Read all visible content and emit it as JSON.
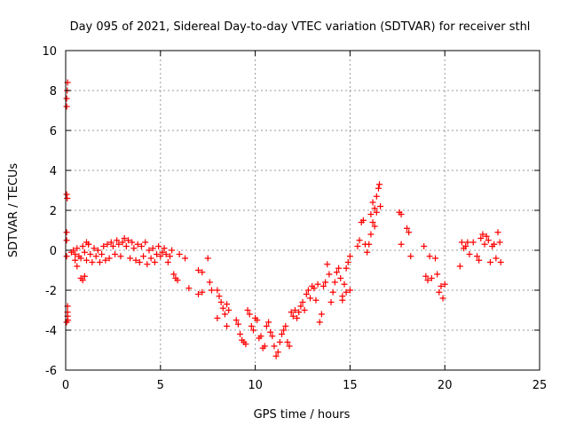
{
  "chart_data": {
    "type": "scatter",
    "title": "Day 095 of 2021, Sidereal Day-to-day VTEC variation (SDTVAR) for receiver sthl",
    "xlabel": "GPS time / hours",
    "ylabel": "SDTVAR / TECUs",
    "xlim": [
      0,
      25
    ],
    "ylim": [
      -6,
      10
    ],
    "xticks": [
      0,
      5,
      10,
      15,
      20,
      25
    ],
    "yticks": [
      -6,
      -4,
      -2,
      0,
      2,
      4,
      6,
      8,
      10
    ],
    "grid": true,
    "marker": "+",
    "color": "#ff0000",
    "series": [
      {
        "name": "SDTVAR",
        "points": [
          [
            0.05,
            7.2
          ],
          [
            0.05,
            7.6
          ],
          [
            0.08,
            8.0
          ],
          [
            0.1,
            8.4
          ],
          [
            0.05,
            2.8
          ],
          [
            0.08,
            2.6
          ],
          [
            0.05,
            0.9
          ],
          [
            0.05,
            0.5
          ],
          [
            0.05,
            -0.3
          ],
          [
            0.1,
            -2.8
          ],
          [
            0.1,
            -3.1
          ],
          [
            0.1,
            -3.3
          ],
          [
            0.12,
            -3.5
          ],
          [
            0.05,
            -3.6
          ],
          [
            0.3,
            -0.1
          ],
          [
            0.4,
            0.0
          ],
          [
            0.5,
            -0.2
          ],
          [
            0.6,
            0.1
          ],
          [
            0.7,
            -0.3
          ],
          [
            0.8,
            -0.4
          ],
          [
            0.9,
            0.2
          ],
          [
            1.0,
            -0.1
          ],
          [
            1.1,
            -0.5
          ],
          [
            1.2,
            0.3
          ],
          [
            1.3,
            -0.2
          ],
          [
            1.4,
            -0.6
          ],
          [
            1.5,
            0.1
          ],
          [
            1.6,
            -0.3
          ],
          [
            1.7,
            0.0
          ],
          [
            1.8,
            -0.6
          ],
          [
            1.9,
            -0.2
          ],
          [
            2.0,
            0.2
          ],
          [
            2.1,
            -0.5
          ],
          [
            2.2,
            0.3
          ],
          [
            2.3,
            -0.4
          ],
          [
            2.4,
            0.4
          ],
          [
            2.5,
            0.2
          ],
          [
            2.6,
            -0.2
          ],
          [
            2.7,
            0.5
          ],
          [
            2.8,
            0.3
          ],
          [
            2.9,
            -0.3
          ],
          [
            3.0,
            0.4
          ],
          [
            3.1,
            0.6
          ],
          [
            3.2,
            0.2
          ],
          [
            3.3,
            0.5
          ],
          [
            3.4,
            -0.4
          ],
          [
            3.5,
            0.4
          ],
          [
            3.6,
            0.1
          ],
          [
            3.7,
            -0.5
          ],
          [
            3.8,
            0.3
          ],
          [
            3.9,
            -0.6
          ],
          [
            4.0,
            0.2
          ],
          [
            4.1,
            -0.3
          ],
          [
            4.2,
            0.4
          ],
          [
            4.3,
            -0.7
          ],
          [
            4.4,
            0.0
          ],
          [
            4.5,
            -0.4
          ],
          [
            4.6,
            0.1
          ],
          [
            4.7,
            -0.6
          ],
          [
            4.8,
            -0.2
          ],
          [
            4.9,
            0.2
          ],
          [
            5.0,
            -0.3
          ],
          [
            5.1,
            -0.1
          ],
          [
            5.2,
            0.1
          ],
          [
            5.3,
            -0.2
          ],
          [
            5.4,
            -0.6
          ],
          [
            5.5,
            -0.3
          ],
          [
            5.6,
            0.0
          ],
          [
            5.7,
            -1.2
          ],
          [
            5.8,
            -1.4
          ],
          [
            5.9,
            -1.5
          ],
          [
            6.0,
            -0.2
          ],
          [
            0.8,
            -1.4
          ],
          [
            0.9,
            -1.5
          ],
          [
            1.0,
            -1.3
          ],
          [
            1.1,
            0.4
          ],
          [
            1.2,
            0.3
          ],
          [
            0.6,
            -0.8
          ],
          [
            0.5,
            -0.5
          ],
          [
            6.3,
            -0.4
          ],
          [
            6.5,
            -1.9
          ],
          [
            7.0,
            -1.0
          ],
          [
            7.2,
            -1.1
          ],
          [
            7.0,
            -2.2
          ],
          [
            7.2,
            -2.1
          ],
          [
            7.5,
            -0.4
          ],
          [
            7.6,
            -1.6
          ],
          [
            7.7,
            -2.0
          ],
          [
            8.0,
            -2.0
          ],
          [
            8.1,
            -2.3
          ],
          [
            8.2,
            -2.6
          ],
          [
            8.3,
            -2.9
          ],
          [
            8.4,
            -3.2
          ],
          [
            8.0,
            -3.4
          ],
          [
            8.5,
            -2.7
          ],
          [
            8.5,
            -3.8
          ],
          [
            8.6,
            -3.0
          ],
          [
            9.0,
            -3.5
          ],
          [
            9.1,
            -3.7
          ],
          [
            9.2,
            -4.2
          ],
          [
            9.3,
            -4.5
          ],
          [
            9.4,
            -4.6
          ],
          [
            9.5,
            -4.7
          ],
          [
            9.6,
            -3.0
          ],
          [
            9.7,
            -3.2
          ],
          [
            9.8,
            -3.8
          ],
          [
            9.9,
            -4.0
          ],
          [
            10.0,
            -3.4
          ],
          [
            10.1,
            -3.5
          ],
          [
            10.2,
            -4.4
          ],
          [
            10.3,
            -4.3
          ],
          [
            10.4,
            -4.9
          ],
          [
            10.5,
            -4.8
          ],
          [
            10.6,
            -3.8
          ],
          [
            10.7,
            -3.6
          ],
          [
            10.8,
            -4.1
          ],
          [
            10.9,
            -4.3
          ],
          [
            11.0,
            -4.8
          ],
          [
            11.1,
            -5.3
          ],
          [
            11.2,
            -5.1
          ],
          [
            11.3,
            -4.6
          ],
          [
            11.4,
            -4.2
          ],
          [
            11.5,
            -4.0
          ],
          [
            11.6,
            -3.8
          ],
          [
            11.7,
            -4.6
          ],
          [
            11.8,
            -4.8
          ],
          [
            11.9,
            -3.1
          ],
          [
            12.0,
            -3.3
          ],
          [
            12.1,
            -3.0
          ],
          [
            12.2,
            -3.4
          ],
          [
            12.3,
            -3.1
          ],
          [
            12.4,
            -2.8
          ],
          [
            12.5,
            -2.6
          ],
          [
            12.6,
            -3.0
          ],
          [
            12.7,
            -2.2
          ],
          [
            12.8,
            -2.0
          ],
          [
            12.9,
            -2.4
          ],
          [
            13.0,
            -1.8
          ],
          [
            13.1,
            -1.9
          ],
          [
            13.2,
            -2.5
          ],
          [
            13.3,
            -1.7
          ],
          [
            13.4,
            -3.6
          ],
          [
            13.5,
            -3.2
          ],
          [
            13.6,
            -1.8
          ],
          [
            13.7,
            -1.6
          ],
          [
            13.8,
            -0.7
          ],
          [
            13.9,
            -1.2
          ],
          [
            14.0,
            -2.6
          ],
          [
            14.1,
            -2.1
          ],
          [
            14.2,
            -1.6
          ],
          [
            14.3,
            -1.1
          ],
          [
            14.4,
            -0.9
          ],
          [
            14.5,
            -1.4
          ],
          [
            14.6,
            -2.3
          ],
          [
            14.7,
            -1.7
          ],
          [
            14.8,
            -0.9
          ],
          [
            14.9,
            -0.6
          ],
          [
            15.0,
            -0.3
          ],
          [
            14.8,
            -2.1
          ],
          [
            14.6,
            -2.5
          ],
          [
            15.0,
            -2.0
          ],
          [
            15.4,
            0.2
          ],
          [
            15.5,
            0.5
          ],
          [
            15.6,
            1.4
          ],
          [
            15.7,
            1.5
          ],
          [
            15.8,
            0.3
          ],
          [
            15.9,
            -0.1
          ],
          [
            16.0,
            0.3
          ],
          [
            16.1,
            0.8
          ],
          [
            16.2,
            1.4
          ],
          [
            16.3,
            2.1
          ],
          [
            16.4,
            2.7
          ],
          [
            16.5,
            3.1
          ],
          [
            16.55,
            3.3
          ],
          [
            16.6,
            2.2
          ],
          [
            16.1,
            1.8
          ],
          [
            16.2,
            2.4
          ],
          [
            16.3,
            1.2
          ],
          [
            16.4,
            1.9
          ],
          [
            17.6,
            1.9
          ],
          [
            17.7,
            1.8
          ],
          [
            17.7,
            0.3
          ],
          [
            18.0,
            1.1
          ],
          [
            18.1,
            0.9
          ],
          [
            18.2,
            -0.3
          ],
          [
            18.9,
            0.2
          ],
          [
            19.0,
            -1.3
          ],
          [
            19.1,
            -1.5
          ],
          [
            19.2,
            -0.3
          ],
          [
            19.3,
            -1.4
          ],
          [
            19.5,
            -0.4
          ],
          [
            19.6,
            -1.2
          ],
          [
            19.7,
            -2.1
          ],
          [
            19.8,
            -1.8
          ],
          [
            19.9,
            -2.4
          ],
          [
            20.0,
            -1.7
          ],
          [
            20.8,
            -0.8
          ],
          [
            20.9,
            0.4
          ],
          [
            21.0,
            0.1
          ],
          [
            21.1,
            0.2
          ],
          [
            21.2,
            0.4
          ],
          [
            21.3,
            -0.2
          ],
          [
            21.5,
            0.4
          ],
          [
            21.7,
            -0.3
          ],
          [
            21.8,
            -0.5
          ],
          [
            21.9,
            0.6
          ],
          [
            22.0,
            0.8
          ],
          [
            22.1,
            0.3
          ],
          [
            22.2,
            0.7
          ],
          [
            22.3,
            0.5
          ],
          [
            22.4,
            -0.6
          ],
          [
            22.5,
            0.2
          ],
          [
            22.6,
            0.3
          ],
          [
            22.7,
            -0.4
          ],
          [
            22.8,
            0.9
          ],
          [
            22.9,
            0.4
          ],
          [
            22.95,
            -0.6
          ]
        ]
      }
    ]
  }
}
